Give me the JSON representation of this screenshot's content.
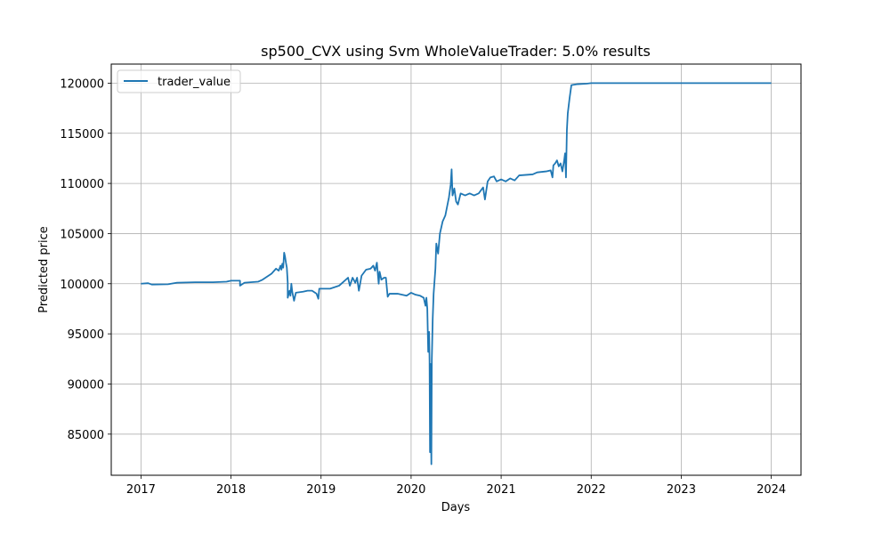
{
  "chart_data": {
    "type": "line",
    "title": "sp500_CVX using Svm WholeValueTrader: 5.0% results",
    "xlabel": "Days",
    "ylabel": "Predicted price",
    "x_ticks": [
      "2017",
      "2018",
      "2019",
      "2020",
      "2021",
      "2022",
      "2023",
      "2024"
    ],
    "y_ticks": [
      "85000",
      "90000",
      "95000",
      "100000",
      "105000",
      "110000",
      "115000",
      "120000"
    ],
    "xlim": [
      2016.67,
      2024.33
    ],
    "ylim": [
      80900,
      121900
    ],
    "grid": true,
    "legend_position": "top-left",
    "series_color": "#1f77b4",
    "series": [
      {
        "name": "trader_value",
        "points": [
          [
            2017.0,
            100000
          ],
          [
            2017.08,
            100050
          ],
          [
            2017.12,
            99920
          ],
          [
            2017.3,
            99950
          ],
          [
            2017.4,
            100100
          ],
          [
            2017.6,
            100150
          ],
          [
            2017.8,
            100150
          ],
          [
            2017.95,
            100200
          ],
          [
            2018.0,
            100300
          ],
          [
            2018.1,
            100300
          ],
          [
            2018.1,
            99800
          ],
          [
            2018.15,
            100100
          ],
          [
            2018.3,
            100200
          ],
          [
            2018.35,
            100400
          ],
          [
            2018.4,
            100700
          ],
          [
            2018.45,
            101000
          ],
          [
            2018.5,
            101500
          ],
          [
            2018.53,
            101300
          ],
          [
            2018.55,
            101800
          ],
          [
            2018.56,
            101400
          ],
          [
            2018.57,
            102000
          ],
          [
            2018.58,
            101600
          ],
          [
            2018.59,
            103100
          ],
          [
            2018.6,
            102700
          ],
          [
            2018.61,
            102100
          ],
          [
            2018.62,
            101600
          ],
          [
            2018.63,
            100100
          ],
          [
            2018.63,
            98600
          ],
          [
            2018.65,
            99300
          ],
          [
            2018.66,
            98800
          ],
          [
            2018.67,
            100000
          ],
          [
            2018.68,
            99200
          ],
          [
            2018.7,
            98300
          ],
          [
            2018.72,
            99100
          ],
          [
            2018.8,
            99200
          ],
          [
            2018.85,
            99300
          ],
          [
            2018.9,
            99300
          ],
          [
            2018.95,
            99000
          ],
          [
            2018.97,
            98500
          ],
          [
            2018.98,
            99500
          ],
          [
            2019.1,
            99500
          ],
          [
            2019.2,
            99800
          ],
          [
            2019.25,
            100200
          ],
          [
            2019.3,
            100600
          ],
          [
            2019.32,
            99800
          ],
          [
            2019.35,
            100600
          ],
          [
            2019.38,
            100100
          ],
          [
            2019.4,
            100600
          ],
          [
            2019.42,
            99300
          ],
          [
            2019.45,
            100800
          ],
          [
            2019.5,
            101400
          ],
          [
            2019.55,
            101500
          ],
          [
            2019.58,
            101800
          ],
          [
            2019.6,
            101300
          ],
          [
            2019.62,
            102100
          ],
          [
            2019.64,
            100000
          ],
          [
            2019.65,
            101200
          ],
          [
            2019.67,
            100400
          ],
          [
            2019.7,
            100600
          ],
          [
            2019.72,
            100600
          ],
          [
            2019.74,
            98700
          ],
          [
            2019.76,
            99000
          ],
          [
            2019.85,
            99000
          ],
          [
            2019.95,
            98800
          ],
          [
            2020.0,
            99100
          ],
          [
            2020.05,
            98900
          ],
          [
            2020.1,
            98800
          ],
          [
            2020.14,
            98600
          ],
          [
            2020.16,
            97800
          ],
          [
            2020.17,
            98600
          ],
          [
            2020.18,
            97500
          ],
          [
            2020.19,
            93200
          ],
          [
            2020.2,
            95200
          ],
          [
            2020.205,
            92300
          ],
          [
            2020.21,
            83200
          ],
          [
            2020.215,
            92000
          ],
          [
            2020.22,
            86000
          ],
          [
            2020.225,
            82000
          ],
          [
            2020.23,
            92400
          ],
          [
            2020.24,
            96500
          ],
          [
            2020.25,
            99000
          ],
          [
            2020.27,
            101500
          ],
          [
            2020.28,
            104000
          ],
          [
            2020.3,
            103000
          ],
          [
            2020.32,
            105000
          ],
          [
            2020.35,
            106200
          ],
          [
            2020.38,
            106800
          ],
          [
            2020.4,
            107700
          ],
          [
            2020.42,
            108600
          ],
          [
            2020.44,
            109900
          ],
          [
            2020.45,
            111400
          ],
          [
            2020.46,
            108800
          ],
          [
            2020.48,
            109500
          ],
          [
            2020.5,
            108200
          ],
          [
            2020.52,
            107900
          ],
          [
            2020.55,
            109000
          ],
          [
            2020.6,
            108800
          ],
          [
            2020.65,
            109000
          ],
          [
            2020.7,
            108800
          ],
          [
            2020.75,
            109000
          ],
          [
            2020.8,
            109600
          ],
          [
            2020.82,
            108400
          ],
          [
            2020.85,
            110200
          ],
          [
            2020.88,
            110600
          ],
          [
            2020.92,
            110700
          ],
          [
            2020.95,
            110200
          ],
          [
            2021.0,
            110400
          ],
          [
            2021.05,
            110200
          ],
          [
            2021.1,
            110500
          ],
          [
            2021.15,
            110300
          ],
          [
            2021.2,
            110800
          ],
          [
            2021.35,
            110900
          ],
          [
            2021.4,
            111100
          ],
          [
            2021.5,
            111200
          ],
          [
            2021.55,
            111300
          ],
          [
            2021.57,
            110600
          ],
          [
            2021.58,
            111800
          ],
          [
            2021.6,
            112000
          ],
          [
            2021.62,
            112300
          ],
          [
            2021.64,
            111700
          ],
          [
            2021.66,
            112000
          ],
          [
            2021.68,
            111200
          ],
          [
            2021.7,
            112300
          ],
          [
            2021.71,
            113000
          ],
          [
            2021.72,
            110600
          ],
          [
            2021.73,
            115300
          ],
          [
            2021.74,
            117000
          ],
          [
            2021.76,
            118500
          ],
          [
            2021.78,
            119800
          ],
          [
            2021.85,
            119900
          ],
          [
            2021.95,
            119950
          ],
          [
            2022.0,
            120000
          ],
          [
            2023.0,
            120000
          ],
          [
            2024.0,
            120000
          ]
        ]
      }
    ]
  }
}
